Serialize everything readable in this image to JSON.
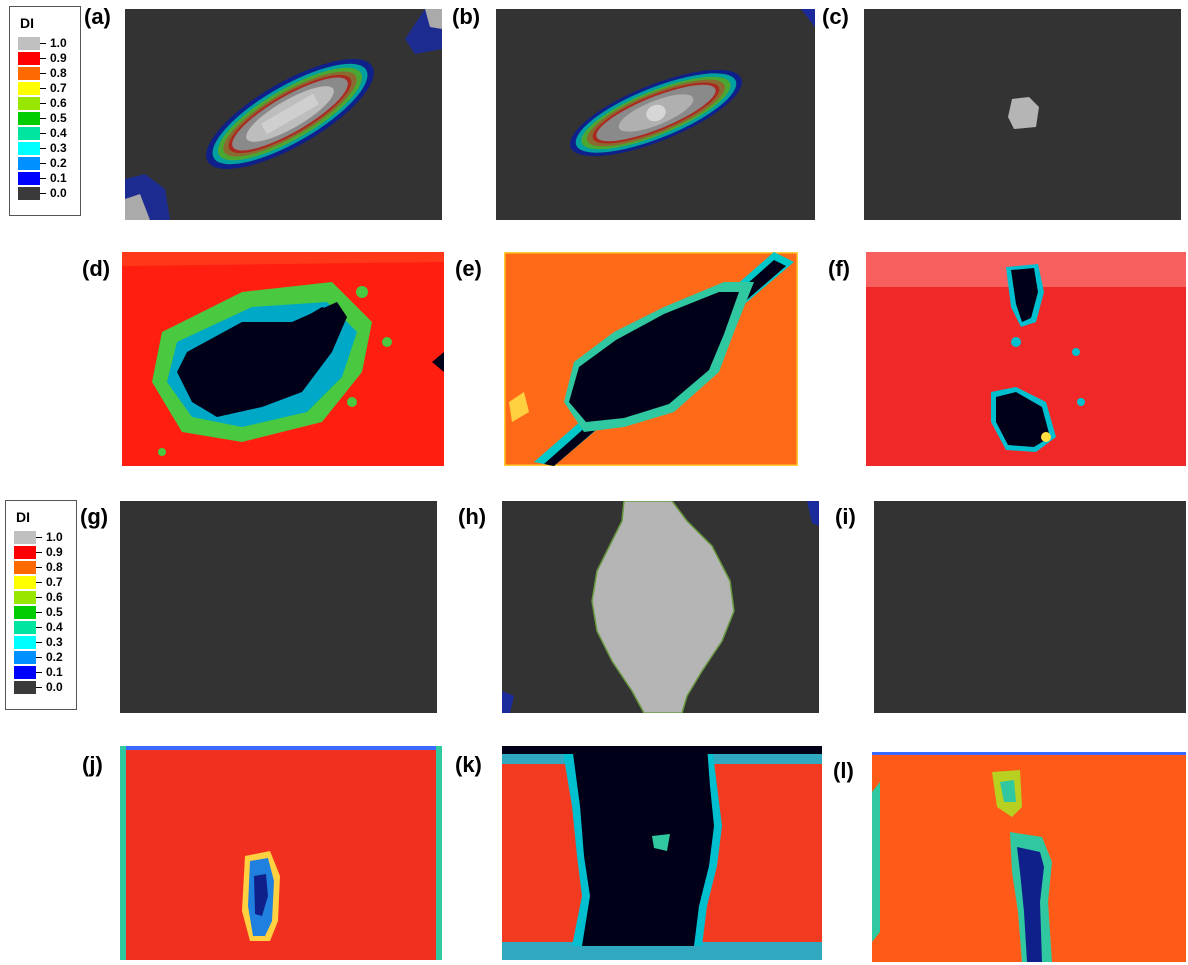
{
  "legends": [
    {
      "title": "DI",
      "entries": [
        {
          "label": "1.0",
          "color": "#c0c0c0"
        },
        {
          "label": "0.9",
          "color": "#ff0000"
        },
        {
          "label": "0.8",
          "color": "#ff6a00"
        },
        {
          "label": "0.7",
          "color": "#ffff00"
        },
        {
          "label": "0.6",
          "color": "#99e600"
        },
        {
          "label": "0.5",
          "color": "#00cc00"
        },
        {
          "label": "0.4",
          "color": "#00e6a0"
        },
        {
          "label": "0.3",
          "color": "#00ffff"
        },
        {
          "label": "0.2",
          "color": "#0090ff"
        },
        {
          "label": "0.1",
          "color": "#0000ff"
        },
        {
          "label": "0.0",
          "color": "#3a3a3a"
        }
      ]
    },
    {
      "title": "DI",
      "entries": [
        {
          "label": "1.0",
          "color": "#c0c0c0"
        },
        {
          "label": "0.9",
          "color": "#ff0000"
        },
        {
          "label": "0.8",
          "color": "#ff6a00"
        },
        {
          "label": "0.7",
          "color": "#ffff00"
        },
        {
          "label": "0.6",
          "color": "#99e600"
        },
        {
          "label": "0.5",
          "color": "#00cc00"
        },
        {
          "label": "0.4",
          "color": "#00e6a0"
        },
        {
          "label": "0.3",
          "color": "#00ffff"
        },
        {
          "label": "0.2",
          "color": "#0090ff"
        },
        {
          "label": "0.1",
          "color": "#0000ff"
        },
        {
          "label": "0.0",
          "color": "#3a3a3a"
        }
      ]
    }
  ],
  "panels": {
    "a": "(a)",
    "b": "(b)",
    "c": "(c)",
    "d": "(d)",
    "e": "(e)",
    "f": "(f)",
    "g": "(g)",
    "h": "(h)",
    "i": "(i)",
    "j": "(j)",
    "k": "(k)",
    "l": "(l)"
  },
  "colors": {
    "background_dark": "#333333",
    "damage_gray": "#b5b5b5",
    "red": "#ff2a10",
    "orange": "#ff7a10",
    "black": "#000018"
  }
}
